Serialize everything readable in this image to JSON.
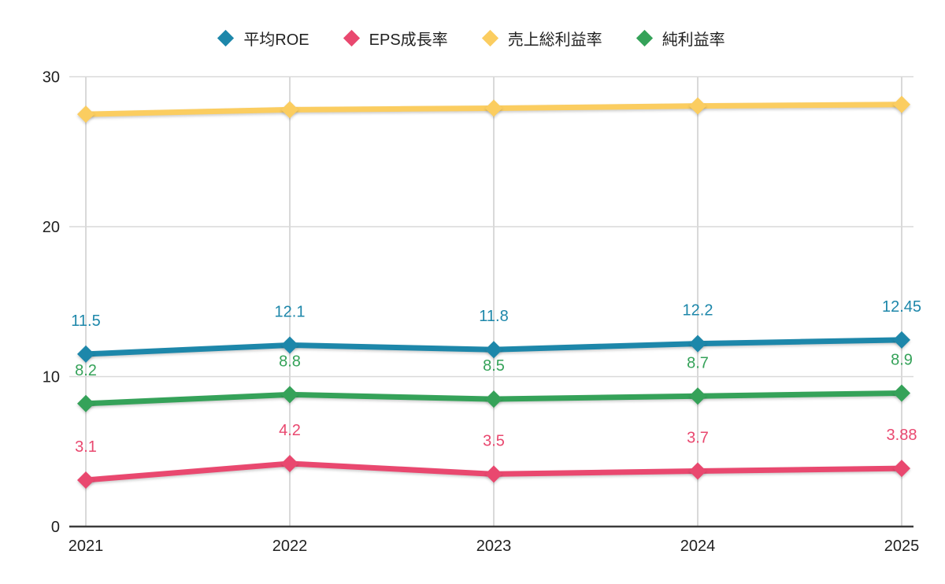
{
  "chart_data": {
    "type": "line",
    "title": "",
    "xlabel": "",
    "ylabel": "",
    "x_categories": [
      "2021",
      "2022",
      "2023",
      "2024",
      "2025"
    ],
    "series": [
      {
        "name": "平均ROE",
        "color": "#1d87aa",
        "values": [
          11.5,
          12.1,
          11.8,
          12.2,
          12.45
        ],
        "data_labels": [
          "11.5",
          "12.1",
          "11.8",
          "12.2",
          "12.45"
        ],
        "show_labels": true
      },
      {
        "name": "EPS成長率",
        "color": "#e9486f",
        "values": [
          3.1,
          4.2,
          3.5,
          3.7,
          3.88
        ],
        "data_labels": [
          "3.1",
          "4.2",
          "3.5",
          "3.7",
          "3.88"
        ],
        "show_labels": true
      },
      {
        "name": "売上総利益率",
        "color": "#fbcd60",
        "values": [
          27.5,
          27.8,
          27.9,
          28.05,
          28.15
        ],
        "data_labels": [],
        "show_labels": false
      },
      {
        "name": "純利益率",
        "color": "#35a259",
        "values": [
          8.2,
          8.8,
          8.5,
          8.7,
          8.9
        ],
        "data_labels": [
          "8.2",
          "8.8",
          "8.5",
          "8.7",
          "8.9"
        ],
        "show_labels": true
      }
    ],
    "ylim": [
      0,
      30
    ],
    "yticks": [
      0,
      10,
      20,
      30
    ],
    "grid": true,
    "legend_position": "top",
    "marker": "diamond"
  },
  "colors": {
    "background": "#ffffff",
    "grid": "#d9d9d9",
    "axis": "#3c3c3c",
    "tick_text": "#212121"
  }
}
